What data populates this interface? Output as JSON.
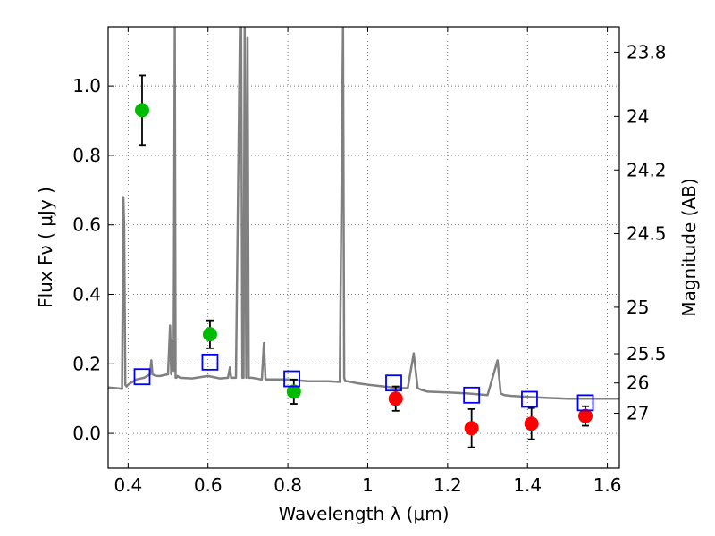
{
  "chart_data": {
    "type": "scatter",
    "title": "",
    "xlabel": "Wavelength  λ (μm)",
    "ylabel": "Flux  Fν  ( μJy )",
    "y2label": "Magnitude (AB)",
    "xlim": [
      0.35,
      1.63
    ],
    "ylim": [
      -0.1,
      1.17
    ],
    "grid": true,
    "x_ticks": [
      0.4,
      0.6,
      0.8,
      1.0,
      1.2,
      1.4,
      1.6
    ],
    "x_tick_labels": [
      "0.4",
      "0.6",
      "0.8",
      "1",
      "1.2",
      "1.4",
      "1.6"
    ],
    "y_ticks": [
      0.0,
      0.2,
      0.4,
      0.6,
      0.8,
      1.0
    ],
    "y_tick_labels": [
      "0.0",
      "0.2",
      "0.4",
      "0.6",
      "0.8",
      "1.0"
    ],
    "y2_ticks": [
      {
        "flux": 1.097,
        "label": "23.8"
      },
      {
        "flux": 0.912,
        "label": "24"
      },
      {
        "flux": 0.758,
        "label": "24.2"
      },
      {
        "flux": 0.575,
        "label": "24.5"
      },
      {
        "flux": 0.363,
        "label": "25"
      },
      {
        "flux": 0.229,
        "label": "25.5"
      },
      {
        "flux": 0.145,
        "label": "26"
      },
      {
        "flux": 0.058,
        "label": "27"
      }
    ],
    "colors": {
      "spectrum": "#808080",
      "green_points": "#00bb00",
      "red_points": "#ff0000",
      "model_squares": "#0000ff",
      "errorbar": "#000000",
      "grid": "#555555"
    },
    "series": [
      {
        "kind": "line",
        "color": "#808080",
        "x": [
          0.35,
          0.37,
          0.385,
          0.388,
          0.39,
          0.393,
          0.396,
          0.4,
          0.42,
          0.44,
          0.455,
          0.458,
          0.461,
          0.47,
          0.48,
          0.5,
          0.505,
          0.508,
          0.511,
          0.514,
          0.517,
          0.519,
          0.521,
          0.524,
          0.53,
          0.56,
          0.6,
          0.63,
          0.65,
          0.655,
          0.658,
          0.661,
          0.67,
          0.68,
          0.683,
          0.686,
          0.689,
          0.692,
          0.696,
          0.699,
          0.702,
          0.71,
          0.735,
          0.74,
          0.744,
          0.75,
          0.8,
          0.85,
          0.9,
          0.93,
          0.938,
          0.941,
          0.944,
          0.95,
          0.97,
          1.0,
          1.04,
          1.08,
          1.1,
          1.115,
          1.125,
          1.135,
          1.15,
          1.2,
          1.25,
          1.3,
          1.325,
          1.333,
          1.342,
          1.36,
          1.4,
          1.45,
          1.5,
          1.55,
          1.6,
          1.63
        ],
        "y": [
          0.132,
          0.13,
          0.128,
          0.68,
          0.6,
          0.14,
          0.135,
          0.14,
          0.155,
          0.16,
          0.17,
          0.21,
          0.17,
          0.165,
          0.165,
          0.17,
          0.31,
          0.17,
          0.27,
          0.18,
          1.17,
          0.16,
          0.16,
          0.165,
          0.16,
          0.158,
          0.165,
          0.158,
          0.16,
          0.19,
          0.16,
          0.16,
          0.16,
          1.17,
          1.17,
          0.16,
          0.16,
          1.17,
          0.16,
          1.14,
          0.16,
          0.16,
          0.155,
          0.26,
          0.155,
          0.155,
          0.155,
          0.15,
          0.15,
          0.148,
          1.17,
          0.16,
          0.15,
          0.15,
          0.145,
          0.14,
          0.135,
          0.13,
          0.13,
          0.23,
          0.13,
          0.125,
          0.12,
          0.118,
          0.115,
          0.11,
          0.21,
          0.115,
          0.11,
          0.108,
          0.105,
          0.102,
          0.1,
          0.1,
          0.1,
          0.1
        ]
      },
      {
        "kind": "errorbar",
        "color": "#00bb00",
        "x": [
          0.435,
          0.605,
          0.815
        ],
        "y": [
          0.93,
          0.285,
          0.12
        ],
        "err": [
          0.1,
          0.04,
          0.035
        ]
      },
      {
        "kind": "errorbar",
        "color": "#ff0000",
        "x": [
          1.07,
          1.26,
          1.41,
          1.545
        ],
        "y": [
          0.1,
          0.015,
          0.028,
          0.05
        ],
        "err": [
          0.035,
          0.055,
          0.045,
          0.028
        ]
      },
      {
        "kind": "squares",
        "color": "#0000ff",
        "x": [
          0.435,
          0.605,
          0.81,
          1.065,
          1.26,
          1.405,
          1.545
        ],
        "y": [
          0.163,
          0.205,
          0.157,
          0.145,
          0.11,
          0.098,
          0.088
        ]
      }
    ]
  }
}
